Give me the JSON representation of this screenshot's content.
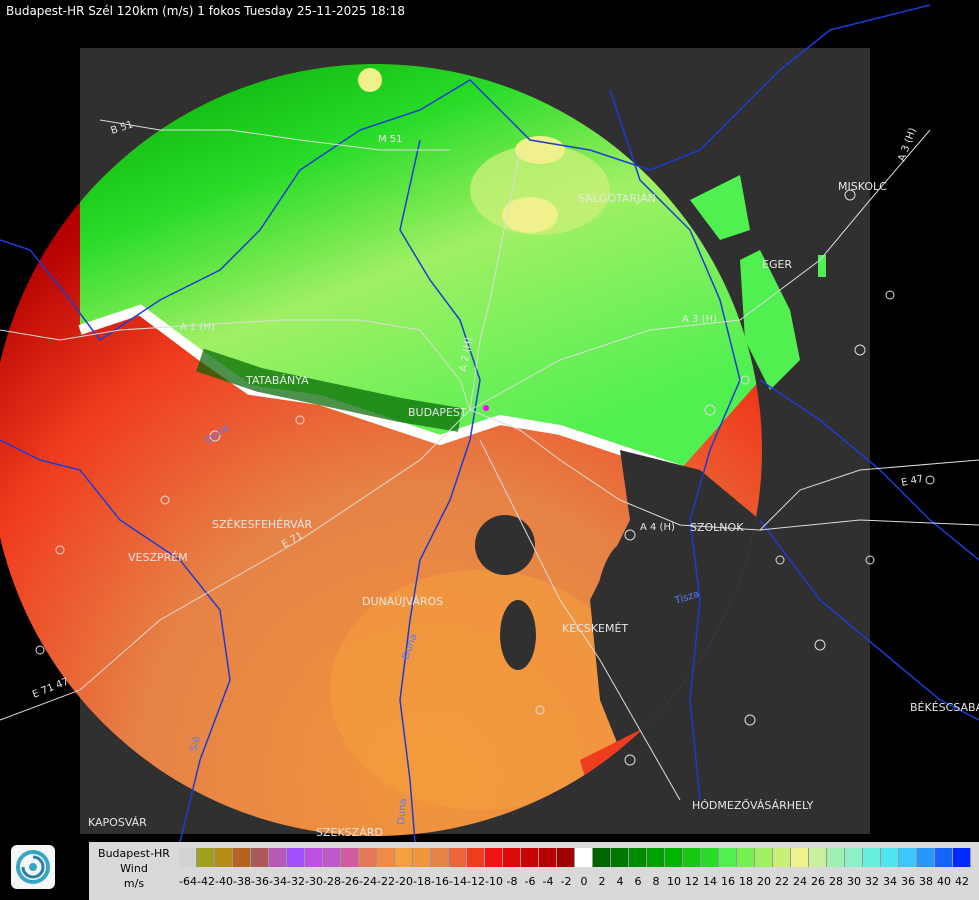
{
  "header": {
    "title": "Budapest-HR Szél 120km (m/s) 1 fokos Tuesday 25-11-2025 18:18"
  },
  "map": {
    "cities": [
      "SALGÓTARJÁN",
      "MISKOLC",
      "EGER",
      "TATABÁNYA",
      "BUDAPEST",
      "SZÉKESFEHÉRVÁR",
      "VESZPRÉM",
      "DUNAÚJVÁROS",
      "KECSKEMÉT",
      "SZOLNOK",
      "BÉKÉSCSABA",
      "HÓDMEZŐVÁSÁRHELY",
      "KAPOSVÁR",
      "SZEKSZÁRD"
    ],
    "roads": [
      "B 51",
      "M 51",
      "A 1 (H)",
      "A 2 (H)",
      "A 3 (H)",
      "A 3 (H)",
      "A 4 (H)",
      "E 71",
      "E 47",
      "E 71 47"
    ],
    "rivers": [
      "Duna",
      "Sió",
      "Tisza",
      "Duna",
      "Duna"
    ],
    "colors": {
      "background": "#000000",
      "radar_frame": "#303030",
      "borders": "#1e3cd2",
      "roads": "#dcdcdc"
    }
  },
  "legend": {
    "station": "Budapest-HR",
    "quantity": "Wind",
    "unit": "m/s",
    "values": [
      "-64",
      "-42",
      "-40",
      "-38",
      "-36",
      "-34",
      "-32",
      "-30",
      "-28",
      "-26",
      "-24",
      "-22",
      "-20",
      "-18",
      "-16",
      "-14",
      "-12",
      "-10",
      "-8",
      "-6",
      "-4",
      "-2",
      "0",
      "2",
      "4",
      "6",
      "8",
      "10",
      "12",
      "14",
      "16",
      "18",
      "20",
      "22",
      "24",
      "26",
      "28",
      "30",
      "32",
      "34",
      "36",
      "38",
      "40",
      "42"
    ],
    "swatches": [
      "#d2d2d2",
      "#a0a020",
      "#b48c14",
      "#b4641e",
      "#aa5a5a",
      "#b45ab4",
      "#a050ff",
      "#be50e6",
      "#be5ac8",
      "#d25aa0",
      "#e6785a",
      "#f08c46",
      "#f5a03c",
      "#f0963c",
      "#e68246",
      "#f0643c",
      "#f03c1e",
      "#f01414",
      "#dc0a0a",
      "#c80505",
      "#b40000",
      "#a00000",
      "#ffffff",
      "#006400",
      "#007800",
      "#008c00",
      "#00a000",
      "#00b400",
      "#14c814",
      "#28dc28",
      "#50f050",
      "#78f050",
      "#a0f064",
      "#c8f078",
      "#f0f08c",
      "#c8f0a0",
      "#a0f0b4",
      "#8cf0c8",
      "#64f0dc",
      "#50e6f0",
      "#3cc8ff",
      "#2896ff",
      "#1464ff",
      "#0028ff"
    ],
    "logo_icon": "met-service-logo-icon"
  }
}
